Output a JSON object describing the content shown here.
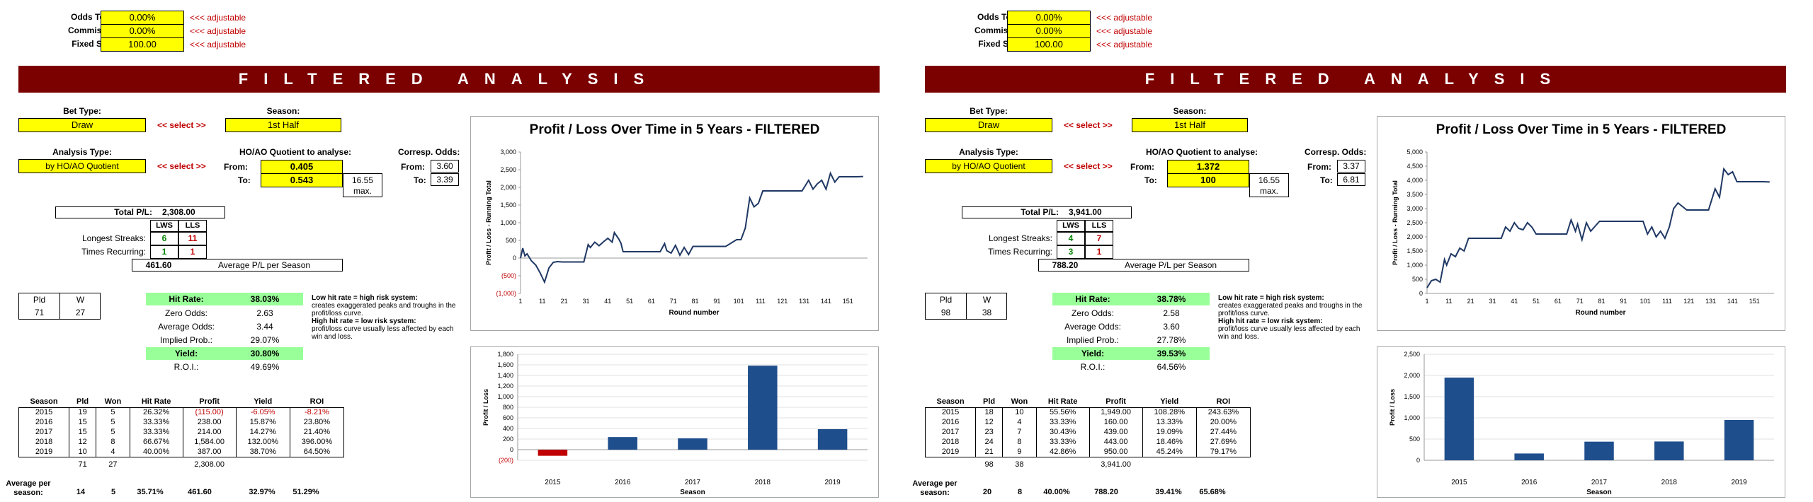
{
  "panels": [
    {
      "settings": {
        "odds_toggle_label": "Odds Toggle:",
        "odds_toggle_value": "0.00%",
        "commission_label": "Commission:",
        "commission_value": "0.00%",
        "fixed_stake_label": "Fixed Stake:",
        "fixed_stake_value": "100.00",
        "adjustable_note": "<<< adjustable"
      },
      "banner": "FILTERED ANALYSIS",
      "bet_type_label": "Bet Type:",
      "bet_type_value": "Draw",
      "season_label": "Season:",
      "season_value": "1st Half",
      "select_label": "<< select >>",
      "analysis_type_label": "Analysis Type:",
      "analysis_type_value": "by HO/AO Quotient",
      "quotient_label": "HO/AO Quotient to analyse:",
      "from_label": "From:",
      "from_value": "0.405",
      "to_label": "To:",
      "to_value": "0.543",
      "max_value": "16.55",
      "max_label": "max.",
      "corresp_label": "Corresp. Odds:",
      "corresp_from": "3.60",
      "corresp_to": "3.39",
      "total_pl_label": "Total P/L:",
      "total_pl_value": "2,308.00",
      "lws": "LWS",
      "lls": "LLS",
      "longest_streaks_label": "Longest Streaks:",
      "longest_lws": "6",
      "longest_lls": "11",
      "times_recurring_label": "Times Recurring:",
      "recurring_lws": "1",
      "recurring_lls": "1",
      "avg_pl_value": "461.60",
      "avg_pl_label": "Average P/L per Season",
      "pld_label": "Pld",
      "w_label": "W",
      "pld_value": "71",
      "w_value": "27",
      "hit_rate_label": "Hit Rate:",
      "hit_rate_value": "38.03%",
      "zero_odds_label": "Zero Odds:",
      "zero_odds_value": "2.63",
      "avg_odds_label": "Average Odds:",
      "avg_odds_value": "3.44",
      "implied_label": "Implied Prob.:",
      "implied_value": "29.07%",
      "yield_label": "Yield:",
      "yield_value": "30.80%",
      "roi_label": "R.O.I.:",
      "roi_value": "49.69%",
      "note_low_title": "Low hit rate = high risk system:",
      "note_low_body": "creates exaggerated peaks and troughs in the profit/loss curve.",
      "note_high_title": "High hit rate = low risk system:",
      "note_high_body": "profit/loss curve usually less affected by each win and loss.",
      "table_headers": [
        "Season",
        "Pld",
        "Won",
        "Hit Rate",
        "Profit",
        "Yield",
        "ROI"
      ],
      "table_rows": [
        [
          "2015",
          "19",
          "5",
          "26.32%",
          "(115.00)",
          "-6.05%",
          "-8.21%"
        ],
        [
          "2016",
          "15",
          "5",
          "33.33%",
          "238.00",
          "15.87%",
          "23.80%"
        ],
        [
          "2017",
          "15",
          "5",
          "33.33%",
          "214.00",
          "14.27%",
          "21.40%"
        ],
        [
          "2018",
          "12",
          "8",
          "66.67%",
          "1,584.00",
          "132.00%",
          "396.00%"
        ],
        [
          "2019",
          "10",
          "4",
          "40.00%",
          "387.00",
          "38.70%",
          "64.50%"
        ]
      ],
      "totals_row": [
        "",
        "71",
        "27",
        "",
        "2,308.00",
        "",
        ""
      ],
      "avg_label": "Average per season:",
      "avg_row": [
        "14",
        "5",
        "35.71%",
        "461.60",
        "32.97%",
        "51.29%"
      ],
      "chart_data": [
        {
          "type": "line",
          "title": "Profit / Loss Over Time in 5 Years - FILTERED",
          "xlabel": "Round number",
          "ylabel": "Profit / Loss - Running Total",
          "ylim": [
            -1000,
            3000
          ],
          "yticks": [
            "(1,000)",
            "(500)",
            "0",
            "500",
            "1,000",
            "1,500",
            "2,000",
            "2,500",
            "3,000"
          ],
          "xticks": [
            "1",
            "11",
            "21",
            "31",
            "41",
            "51",
            "61",
            "71",
            "81",
            "91",
            "101",
            "111",
            "121",
            "131",
            "141",
            "151"
          ],
          "x": [
            1,
            2,
            3,
            4,
            6,
            8,
            10,
            11,
            12,
            14,
            16,
            18,
            20,
            25,
            30,
            32,
            33,
            35,
            37,
            39,
            41,
            43,
            44,
            46,
            47,
            48,
            50,
            55,
            60,
            65,
            67,
            68,
            70,
            72,
            74,
            76,
            78,
            80,
            85,
            90,
            95,
            100,
            102,
            104,
            106,
            108,
            110,
            112,
            114,
            116,
            118,
            120,
            125,
            130,
            133,
            135,
            137,
            139,
            141,
            143,
            145,
            147,
            150,
            155,
            158
          ],
          "y": [
            0,
            280,
            60,
            120,
            -80,
            -200,
            -420,
            -550,
            -680,
            -280,
            -120,
            -100,
            -110,
            -110,
            -110,
            380,
            300,
            450,
            350,
            460,
            560,
            450,
            720,
            540,
            420,
            180,
            180,
            180,
            180,
            180,
            410,
            210,
            140,
            360,
            80,
            300,
            100,
            330,
            330,
            330,
            330,
            520,
            520,
            850,
            1700,
            1450,
            1550,
            1900,
            1900,
            1900,
            1900,
            1900,
            1900,
            1900,
            2200,
            1950,
            2100,
            2200,
            1950,
            2400,
            2150,
            2300,
            2300,
            2300,
            2308
          ]
        },
        {
          "type": "bar",
          "categories": [
            "2015",
            "2016",
            "2017",
            "2018",
            "2019"
          ],
          "values": [
            -115,
            238,
            214,
            1584,
            387
          ],
          "xlabel": "Season",
          "ylabel": "Profit / Loss",
          "ylim": [
            -200,
            1800
          ],
          "yticks": [
            "(200)",
            "0",
            "200",
            "400",
            "600",
            "800",
            "1,000",
            "1,200",
            "1,400",
            "1,600",
            "1,800"
          ],
          "colors": {
            "positive": "#1f4e8c",
            "negative": "#c00000"
          }
        }
      ]
    },
    {
      "settings": {
        "odds_toggle_label": "Odds Toggle:",
        "odds_toggle_value": "0.00%",
        "commission_label": "Commission:",
        "commission_value": "0.00%",
        "fixed_stake_label": "Fixed Stake:",
        "fixed_stake_value": "100.00",
        "adjustable_note": "<<< adjustable"
      },
      "banner": "FILTERED ANALYSIS",
      "bet_type_label": "Bet Type:",
      "bet_type_value": "Draw",
      "season_label": "Season:",
      "season_value": "1st Half",
      "select_label": "<< select >>",
      "analysis_type_label": "Analysis Type:",
      "analysis_type_value": "by HO/AO Quotient",
      "quotient_label": "HO/AO Quotient to analyse:",
      "from_label": "From:",
      "from_value": "1.372",
      "to_label": "To:",
      "to_value": "100",
      "max_value": "16.55",
      "max_label": "max.",
      "corresp_label": "Corresp. Odds:",
      "corresp_from": "3.37",
      "corresp_to": "6.81",
      "total_pl_label": "Total P/L:",
      "total_pl_value": "3,941.00",
      "lws": "LWS",
      "lls": "LLS",
      "longest_streaks_label": "Longest Streaks:",
      "longest_lws": "4",
      "longest_lls": "7",
      "times_recurring_label": "Times Recurring:",
      "recurring_lws": "3",
      "recurring_lls": "1",
      "avg_pl_value": "788.20",
      "avg_pl_label": "Average P/L per Season",
      "pld_label": "Pld",
      "w_label": "W",
      "pld_value": "98",
      "w_value": "38",
      "hit_rate_label": "Hit Rate:",
      "hit_rate_value": "38.78%",
      "zero_odds_label": "Zero Odds:",
      "zero_odds_value": "2.58",
      "avg_odds_label": "Average Odds:",
      "avg_odds_value": "3.60",
      "implied_label": "Implied Prob.:",
      "implied_value": "27.78%",
      "yield_label": "Yield:",
      "yield_value": "39.53%",
      "roi_label": "R.O.I.:",
      "roi_value": "64.56%",
      "note_low_title": "Low hit rate = high risk system:",
      "note_low_body": "creates exaggerated peaks and troughs in the profit/loss curve.",
      "note_high_title": "High hit rate = low risk system:",
      "note_high_body": "profit/loss curve usually less affected by each win and loss.",
      "table_headers": [
        "Season",
        "Pld",
        "Won",
        "Hit Rate",
        "Profit",
        "Yield",
        "ROI"
      ],
      "table_rows": [
        [
          "2015",
          "18",
          "10",
          "55.56%",
          "1,949.00",
          "108.28%",
          "243.63%"
        ],
        [
          "2016",
          "12",
          "4",
          "33.33%",
          "160.00",
          "13.33%",
          "20.00%"
        ],
        [
          "2017",
          "23",
          "7",
          "30.43%",
          "439.00",
          "19.09%",
          "27.44%"
        ],
        [
          "2018",
          "24",
          "8",
          "33.33%",
          "443.00",
          "18.46%",
          "27.69%"
        ],
        [
          "2019",
          "21",
          "9",
          "42.86%",
          "950.00",
          "45.24%",
          "79.17%"
        ]
      ],
      "totals_row": [
        "",
        "98",
        "38",
        "",
        "3,941.00",
        "",
        ""
      ],
      "avg_label": "Average per season:",
      "avg_row": [
        "20",
        "8",
        "40.00%",
        "788.20",
        "39.41%",
        "65.68%"
      ],
      "chart_data": [
        {
          "type": "line",
          "title": "Profit / Loss Over Time in 5 Years - FILTERED",
          "xlabel": "Round number",
          "ylabel": "Profit / Loss - Running Total",
          "ylim": [
            0,
            5000
          ],
          "yticks": [
            "0",
            "500",
            "1,000",
            "1,500",
            "2,000",
            "2,500",
            "3,000",
            "3,500",
            "4,000",
            "4,500",
            "5,000"
          ],
          "xticks": [
            "1",
            "11",
            "21",
            "31",
            "41",
            "51",
            "61",
            "71",
            "81",
            "91",
            "101",
            "111",
            "121",
            "131",
            "141",
            "151"
          ],
          "x": [
            1,
            3,
            5,
            7,
            9,
            10,
            12,
            14,
            16,
            18,
            20,
            25,
            30,
            35,
            37,
            39,
            41,
            43,
            45,
            47,
            49,
            51,
            55,
            60,
            63,
            65,
            67,
            69,
            70,
            72,
            74,
            76,
            80,
            85,
            90,
            95,
            100,
            102,
            104,
            106,
            108,
            110,
            112,
            114,
            116,
            120,
            125,
            130,
            133,
            135,
            137,
            139,
            141,
            143,
            145,
            150,
            155,
            158
          ],
          "y": [
            200,
            450,
            500,
            400,
            1200,
            1000,
            1400,
            1300,
            1600,
            1500,
            1950,
            1950,
            1950,
            1950,
            2350,
            2200,
            2500,
            2300,
            2250,
            2500,
            2350,
            2100,
            2100,
            2100,
            2100,
            2100,
            2600,
            2200,
            2450,
            1900,
            2500,
            2200,
            2550,
            2550,
            2550,
            2550,
            2550,
            2100,
            2350,
            2000,
            2200,
            1950,
            2350,
            3000,
            3200,
            2950,
            2950,
            2950,
            3700,
            3400,
            4400,
            4200,
            4300,
            3950,
            3950,
            3950,
            3950,
            3941
          ]
        },
        {
          "type": "bar",
          "categories": [
            "2015",
            "2016",
            "2017",
            "2018",
            "2019"
          ],
          "values": [
            1949,
            160,
            439,
            443,
            950
          ],
          "xlabel": "Season",
          "ylabel": "Profit / Loss",
          "ylim": [
            0,
            2500
          ],
          "yticks": [
            "0",
            "500",
            "1,000",
            "1,500",
            "2,000",
            "2,500"
          ],
          "colors": {
            "positive": "#1f4e8c",
            "negative": "#c00000"
          }
        }
      ]
    }
  ]
}
